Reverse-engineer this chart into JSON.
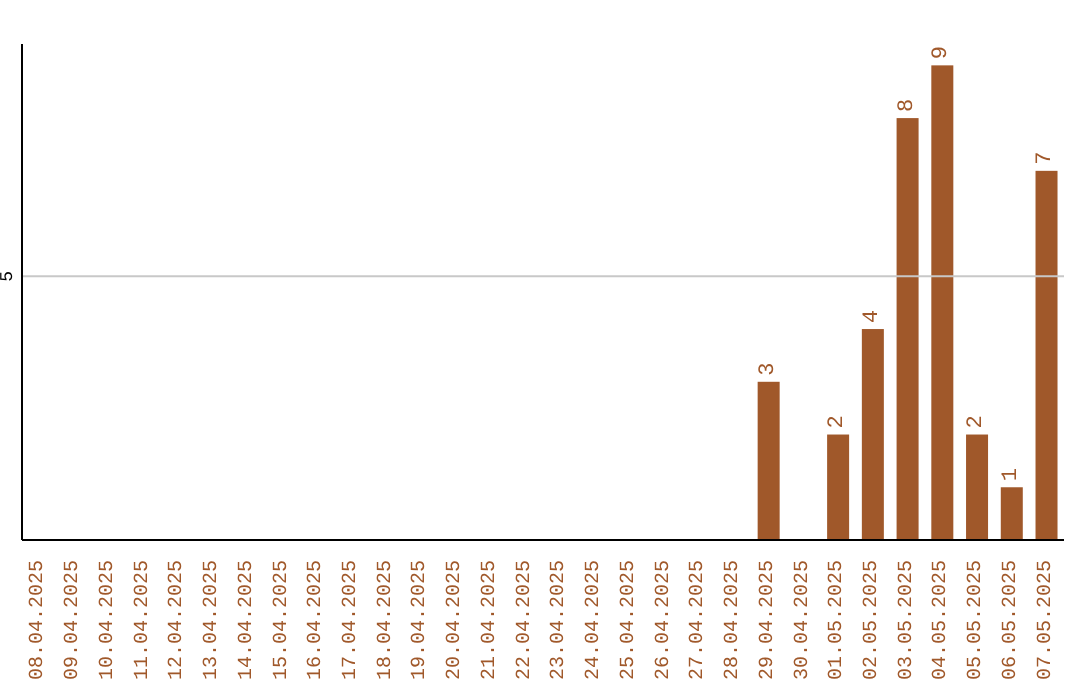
{
  "chart_data": {
    "type": "bar",
    "categories": [
      "08.04.2025",
      "09.04.2025",
      "10.04.2025",
      "11.04.2025",
      "12.04.2025",
      "13.04.2025",
      "14.04.2025",
      "15.04.2025",
      "16.04.2025",
      "17.04.2025",
      "18.04.2025",
      "19.04.2025",
      "20.04.2025",
      "21.04.2025",
      "22.04.2025",
      "23.04.2025",
      "24.04.2025",
      "25.04.2025",
      "26.04.2025",
      "27.04.2025",
      "28.04.2025",
      "29.04.2025",
      "30.04.2025",
      "01.05.2025",
      "02.05.2025",
      "03.05.2025",
      "04.05.2025",
      "05.05.2025",
      "06.05.2025",
      "07.05.2025"
    ],
    "values": [
      null,
      null,
      null,
      null,
      null,
      null,
      null,
      null,
      null,
      null,
      null,
      null,
      null,
      null,
      null,
      null,
      null,
      null,
      null,
      null,
      null,
      3,
      null,
      2,
      4,
      8,
      9,
      2,
      1,
      7
    ],
    "value_labels": [
      null,
      null,
      null,
      null,
      null,
      null,
      null,
      null,
      null,
      null,
      null,
      null,
      null,
      null,
      null,
      null,
      null,
      null,
      null,
      null,
      null,
      "3",
      null,
      "2",
      "4",
      "8",
      "9",
      "2",
      "1",
      "7"
    ],
    "color": "#a0582a",
    "ref_lines": [
      {
        "axis": "y",
        "value": 5,
        "label": "5",
        "color": "#c8c8c8"
      }
    ]
  }
}
